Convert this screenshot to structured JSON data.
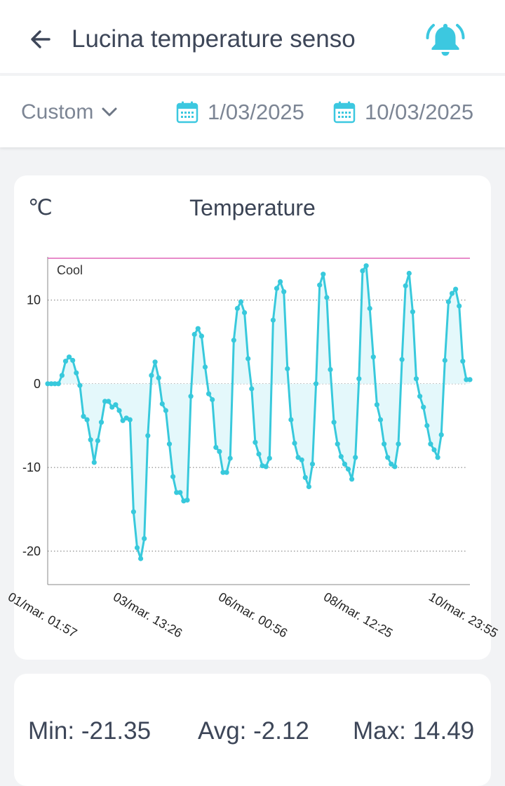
{
  "header": {
    "title": "Lucina temperature senso",
    "back_icon": "arrow-left-icon",
    "alert_icon": "bell-ringing-icon",
    "alert_color": "#3cc8e0"
  },
  "filter": {
    "range_label": "Custom",
    "start_date": "1/03/2025",
    "end_date": "10/03/2025",
    "calendar_icon": "calendar-icon",
    "accent": "#3cc8e0"
  },
  "chart": {
    "unit": "℃",
    "title": "Temperature"
  },
  "chart_data": {
    "type": "line",
    "title": "Temperature",
    "ylabel": "℃",
    "xlabel": "",
    "ylim": [
      -24,
      15
    ],
    "yticks": [
      10,
      0,
      -10,
      -20
    ],
    "grid": "dotted-horizontal",
    "line_color": "#38c9dc",
    "fill": true,
    "fill_color": "#e4f8fb",
    "threshold": {
      "label": "Cool",
      "value": 15,
      "color": "#e065b8"
    },
    "xticks": [
      "01/mar. 01:57",
      "03/mar. 13:26",
      "06/mar. 00:56",
      "08/mar. 12:25",
      "10/mar. 23:55"
    ],
    "series": [
      {
        "values": [
          0,
          0,
          0,
          0,
          1.0,
          2.7,
          3.2,
          2.8,
          1.3,
          -0.2,
          -3.9,
          -4.3,
          -6.7,
          -9.4,
          -6.8,
          -4.6,
          -2.1,
          -2.1,
          -2.8,
          -2.5,
          -3.2,
          -4.4,
          -4.1,
          -4.3,
          -15.3,
          -19.6,
          -20.9,
          -18.5,
          -6.2,
          1.0,
          2.6,
          0.7,
          -2.4,
          -3.2,
          -7.2,
          -11.1,
          -13.0,
          -13.0,
          -14.0,
          -13.9,
          -1.5,
          5.9,
          6.6,
          5.7,
          2.0,
          -1.2,
          -1.9,
          -7.6,
          -8.1,
          -10.6,
          -10.6,
          -8.9,
          5.2,
          9.0,
          9.8,
          8.5,
          3.0,
          -0.6,
          -7.0,
          -8.4,
          -9.8,
          -9.9,
          -8.9,
          7.6,
          11.4,
          12.2,
          11.0,
          1.8,
          -4.3,
          -7.1,
          -8.8,
          -9.1,
          -11.2,
          -12.3,
          -9.6,
          0.0,
          11.8,
          13.1,
          10.3,
          1.7,
          -4.6,
          -7.2,
          -8.7,
          -9.6,
          -10.2,
          -11.4,
          -8.8,
          0.6,
          13.5,
          14.1,
          9.0,
          3.2,
          -2.5,
          -4.3,
          -7.2,
          -8.8,
          -9.6,
          -9.9,
          -7.2,
          2.9,
          11.7,
          13.2,
          8.6,
          0.6,
          -1.5,
          -2.8,
          -5.0,
          -7.2,
          -7.9,
          -8.8,
          -6.1,
          2.8,
          9.8,
          10.8,
          11.3,
          9.3,
          2.7,
          0.5,
          0.5
        ]
      }
    ]
  },
  "stats": {
    "min": "Min: -21.35",
    "avg": "Avg: -2.12",
    "max": "Max: 14.49"
  }
}
